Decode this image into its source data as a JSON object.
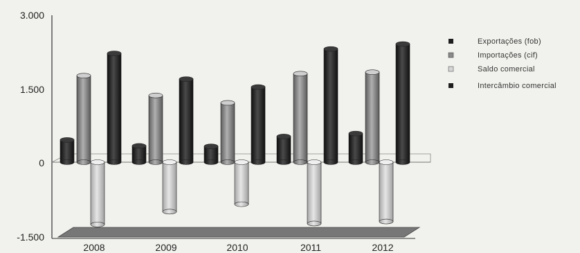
{
  "chart_data": {
    "type": "bar",
    "categories": [
      "2008",
      "2009",
      "2010",
      "2011",
      "2012"
    ],
    "series": [
      {
        "name": "Exportações (fob)",
        "values": [
          450,
          330,
          320,
          520,
          580
        ],
        "color": "#1e1e1e"
      },
      {
        "name": "Importações (cif)",
        "values": [
          1750,
          1350,
          1200,
          1790,
          1820
        ],
        "color": "#8a8a8a"
      },
      {
        "name": "Saldo comercial",
        "values": [
          -1260,
          -1000,
          -850,
          -1240,
          -1200
        ],
        "color": "#c9c9c9"
      },
      {
        "name": "Intercâmbio comercial",
        "values": [
          2200,
          1680,
          1520,
          2290,
          2390
        ],
        "color": "#1e1e1e"
      }
    ],
    "y_ticks": [
      "3.000",
      "1.500",
      "0",
      "-1.500"
    ],
    "ylim": [
      -1500,
      3000
    ],
    "legend_position": "right",
    "grid": false,
    "style": "3d-cylinder"
  }
}
